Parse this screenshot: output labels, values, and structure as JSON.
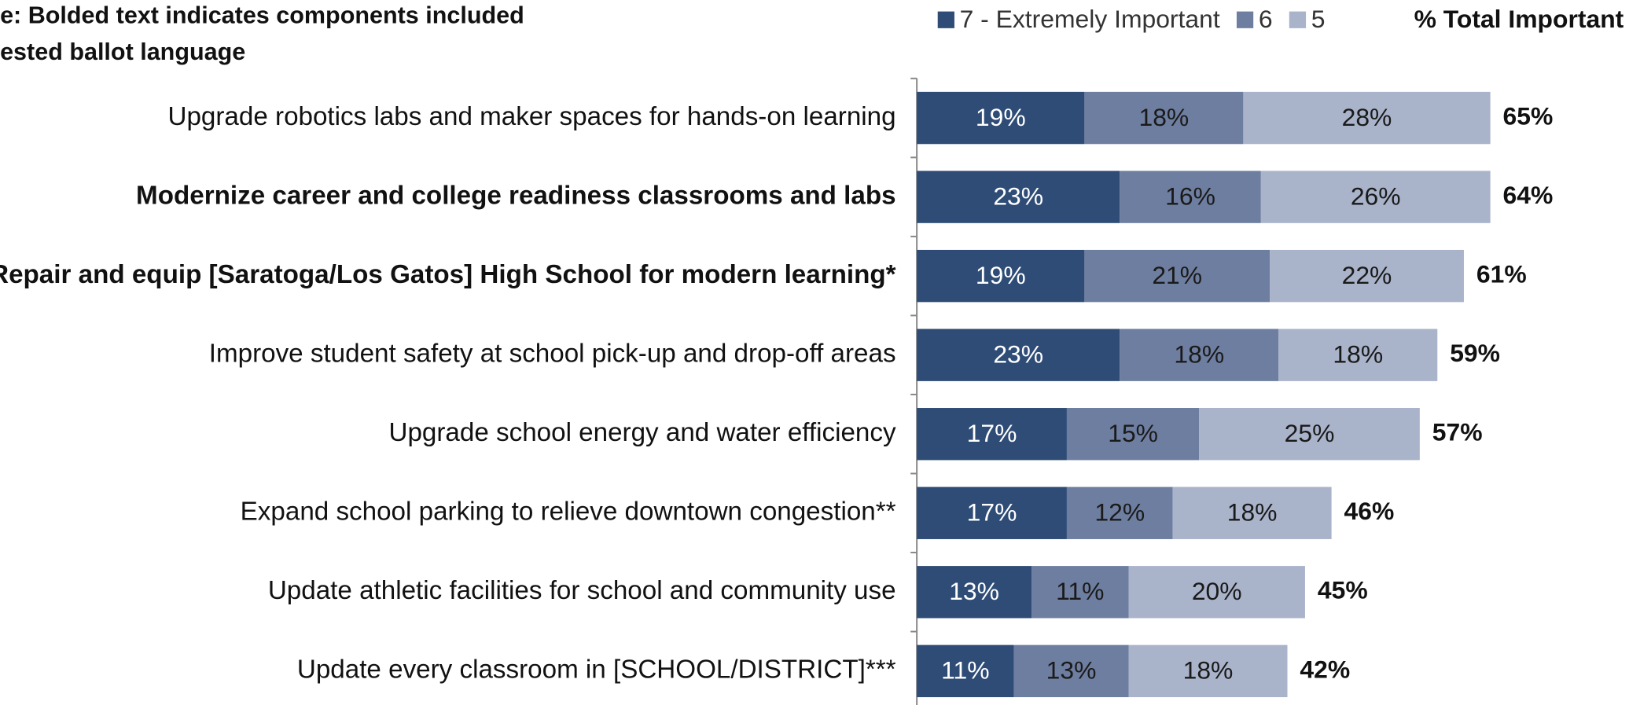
{
  "chart_data": {
    "type": "stacked_barh",
    "annotations": [
      "e: Bolded text indicates components included",
      "ested ballot language"
    ],
    "categories": [
      "Upgrade robotics labs and maker spaces for hands-on learning",
      "Modernize career and college readiness classrooms and labs",
      "Repair and equip [Saratoga/Los Gatos] High School for modern learning*",
      "Improve student safety at school pick-up and drop-off areas",
      "Upgrade school energy and water efficiency",
      "Expand school parking to relieve downtown congestion**",
      "Update athletic facilities for school and community use",
      "Update every classroom in [SCHOOL/DISTRICT]***"
    ],
    "bold_categories": [
      false,
      true,
      true,
      false,
      false,
      false,
      false,
      false
    ],
    "series": [
      {
        "name": "7 - Extremely Important",
        "color": "#2e4c76",
        "label_color": "#ffffff",
        "values": [
          19,
          23,
          19,
          23,
          17,
          17,
          13,
          11
        ],
        "value_labels": [
          "19%",
          "23%",
          "19%",
          "23%",
          "17%",
          "17%",
          "13%",
          "11%"
        ]
      },
      {
        "name": "6",
        "color": "#6e7ea0",
        "label_color": "#1a1a1a",
        "values": [
          18,
          16,
          21,
          18,
          15,
          12,
          11,
          13
        ],
        "value_labels": [
          "18%",
          "16%",
          "21%",
          "18%",
          "15%",
          "12%",
          "11%",
          "13%"
        ]
      },
      {
        "name": "5",
        "color": "#a9b3ca",
        "label_color": "#1a1a1a",
        "values": [
          28,
          26,
          22,
          18,
          25,
          18,
          20,
          18
        ],
        "value_labels": [
          "28%",
          "26%",
          "22%",
          "18%",
          "25%",
          "18%",
          "20%",
          "18%"
        ]
      }
    ],
    "totals": {
      "name": "% Total Important",
      "values": [
        65,
        64,
        61,
        59,
        57,
        46,
        45,
        42
      ],
      "value_labels": [
        "65%",
        "64%",
        "61%",
        "59%",
        "57%",
        "46%",
        "45%",
        "42%"
      ]
    }
  }
}
